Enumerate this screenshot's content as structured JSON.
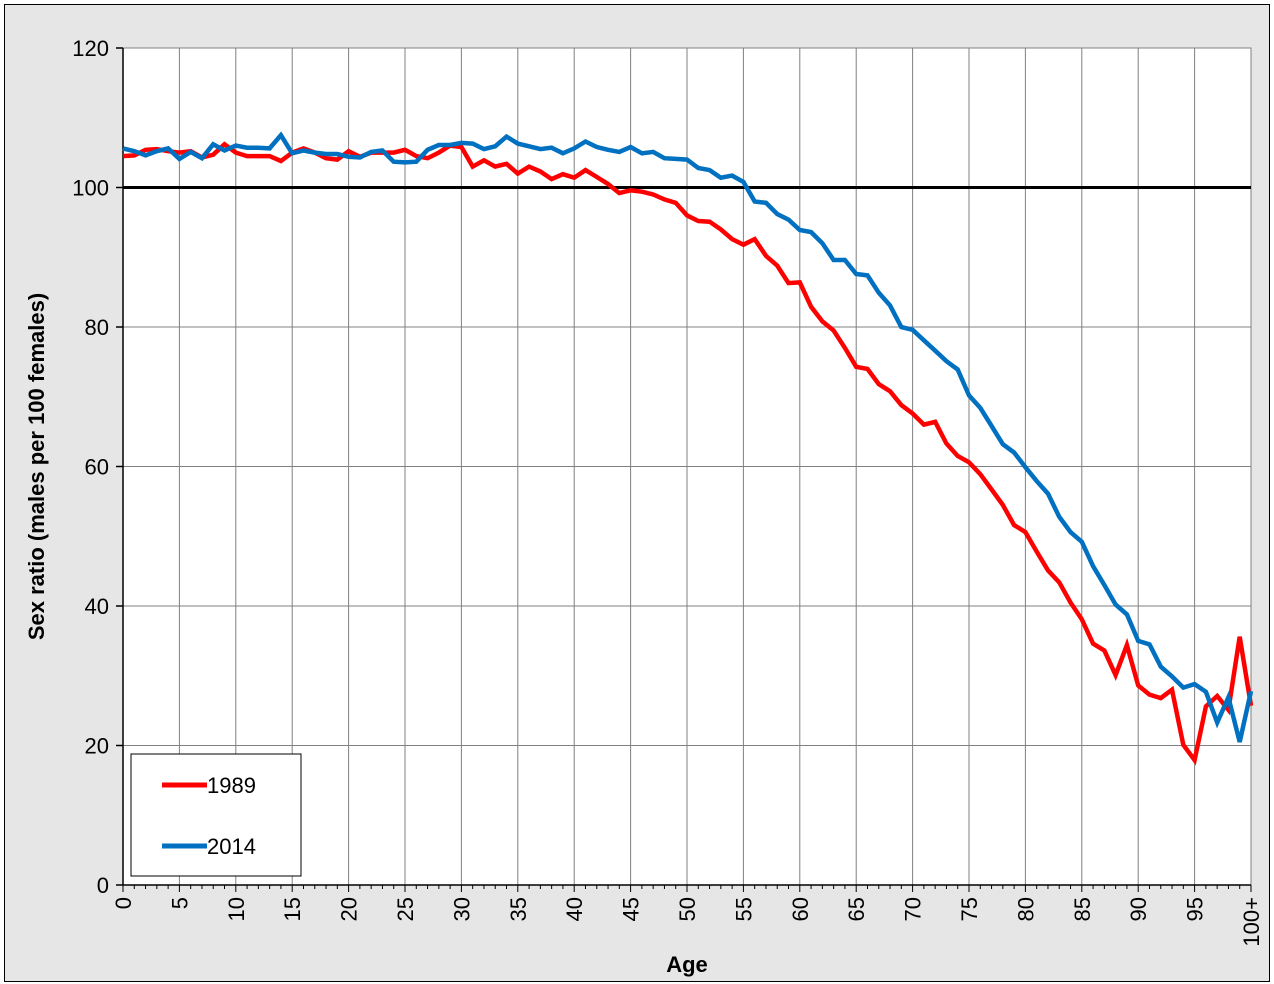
{
  "chart_data": {
    "type": "line",
    "title": "",
    "xlabel": "Age",
    "ylabel": "Sex ratio (males per 100 females)",
    "ylim": [
      0,
      120
    ],
    "yticks": [
      0,
      20,
      40,
      60,
      80,
      100,
      120
    ],
    "xlim": [
      0,
      100
    ],
    "xticks": [
      0,
      5,
      10,
      15,
      20,
      25,
      30,
      35,
      40,
      45,
      50,
      55,
      60,
      65,
      70,
      75,
      80,
      85,
      90,
      95,
      100
    ],
    "xtick_labels": [
      "0",
      "5",
      "10",
      "15",
      "20",
      "25",
      "30",
      "35",
      "40",
      "45",
      "50",
      "55",
      "60",
      "65",
      "70",
      "75",
      "80",
      "85",
      "90",
      "95",
      "100+"
    ],
    "grid": true,
    "legend_position": "bottom-left",
    "reference_line": 100,
    "series": [
      {
        "name": "1989",
        "color": "#ff0000",
        "values": [
          104.5,
          104.6,
          105.4,
          105.5,
          105.2,
          105.0,
          105.2,
          104.3,
          104.7,
          106.2,
          105.0,
          104.5,
          104.5,
          104.5,
          103.8,
          105.0,
          105.6,
          105.0,
          104.2,
          104.0,
          105.2,
          104.4,
          105.0,
          105.0,
          105.0,
          105.4,
          104.5,
          104.2,
          105.0,
          106.0,
          105.8,
          103.0,
          103.9,
          103.0,
          103.4,
          102.0,
          103.0,
          102.3,
          101.2,
          101.9,
          101.4,
          102.5,
          101.5,
          100.5,
          99.2,
          99.6,
          99.4,
          99.0,
          98.3,
          97.8,
          96.0,
          95.2,
          95.1,
          94.0,
          92.6,
          91.8,
          92.6,
          90.2,
          88.8,
          86.3,
          86.4,
          82.9,
          80.8,
          79.5,
          77.0,
          74.3,
          74.0,
          71.8,
          70.8,
          68.8,
          67.6,
          66.0,
          66.4,
          63.3,
          61.5,
          60.6,
          58.9,
          56.7,
          54.5,
          51.6,
          50.6,
          47.8,
          45.1,
          43.4,
          40.5,
          38.1,
          34.6,
          33.6,
          30.1,
          34.4,
          28.6,
          27.3,
          26.8,
          28.0,
          20.1,
          17.9,
          25.6,
          27.1,
          25.1,
          35.6,
          25.7
        ]
      },
      {
        "name": "2014",
        "color": "#0070c0",
        "values": [
          105.6,
          105.2,
          104.6,
          105.2,
          105.6,
          104.1,
          105.1,
          104.2,
          106.2,
          105.3,
          106.0,
          105.7,
          105.7,
          105.6,
          107.5,
          104.9,
          105.3,
          105.0,
          104.8,
          104.8,
          104.4,
          104.3,
          105.1,
          105.3,
          103.7,
          103.6,
          103.7,
          105.4,
          106.1,
          106.1,
          106.4,
          106.3,
          105.5,
          105.9,
          107.3,
          106.3,
          105.9,
          105.5,
          105.7,
          104.9,
          105.6,
          106.6,
          105.8,
          105.4,
          105.1,
          105.8,
          104.9,
          105.1,
          104.2,
          104.1,
          104.0,
          102.8,
          102.5,
          101.4,
          101.7,
          100.8,
          98.0,
          97.8,
          96.2,
          95.4,
          93.9,
          93.6,
          92.0,
          89.6,
          89.6,
          87.6,
          87.4,
          84.9,
          83.1,
          80.0,
          79.6,
          78.1,
          76.6,
          75.1,
          73.9,
          70.2,
          68.4,
          65.8,
          63.2,
          62.0,
          59.9,
          57.9,
          56.1,
          52.8,
          50.6,
          49.2,
          45.7,
          43.0,
          40.2,
          38.8,
          35.0,
          34.5,
          31.3,
          29.9,
          28.3,
          28.8,
          27.7,
          23.3,
          26.9,
          20.5,
          27.8
        ]
      }
    ]
  }
}
